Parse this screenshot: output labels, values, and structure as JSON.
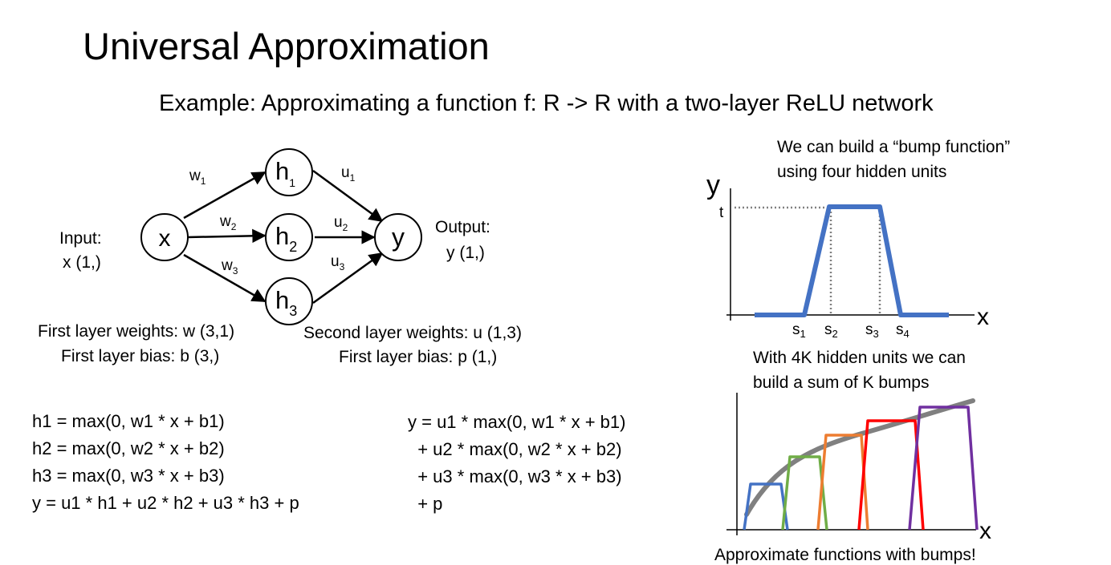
{
  "title": "Universal Approximation",
  "subtitle": "Example: Approximating a function f: R -> R with a two-layer ReLU network",
  "network": {
    "input_label_line1": "Input:",
    "input_label_line2": "x (1,)",
    "output_label_line1": "Output:",
    "output_label_line2": "y (1,)",
    "node_x": "x",
    "node_y": "y",
    "h_base": "h",
    "w_base": "w",
    "u_base": "u",
    "idx1": "1",
    "idx2": "2",
    "idx3": "3",
    "layer1_weights": "First layer weights: w (3,1)",
    "layer1_bias": "First layer bias: b (3,)",
    "layer2_weights": "Second layer weights: u (1,3)",
    "layer2_bias": "First layer bias: p (1,)"
  },
  "equations_left": [
    "h1 = max(0, w1 * x + b1)",
    "h2 = max(0, w2 * x + b2)",
    "h3 = max(0, w3 * x + b3)",
    "y = u1 * h1 + u2 * h2 + u3 * h3 + p"
  ],
  "equations_right": [
    "y = u1 * max(0, w1 * x + b1)",
    "  + u2 * max(0, w2 * x + b2)",
    "  + u3 * max(0, w3 * x + b3)",
    "  + p"
  ],
  "bump": {
    "caption_line1": "We can build a “bump function”",
    "caption_line2": "using four hidden units",
    "y_axis": "y",
    "x_axis": "x",
    "t_label": "t",
    "s_base": "s",
    "s_idx": [
      "1",
      "2",
      "3",
      "4"
    ],
    "color": "#4472C4"
  },
  "sum_bumps": {
    "caption_line1": "With 4K hidden units we can",
    "caption_line2": "build a sum of K bumps",
    "x_axis": "x",
    "bottom_caption": "Approximate functions with bumps!",
    "curve_color": "#808080",
    "bump_colors": [
      "#4472C4",
      "#70AD47",
      "#ED7D31",
      "#FF0000",
      "#7030A0"
    ]
  }
}
